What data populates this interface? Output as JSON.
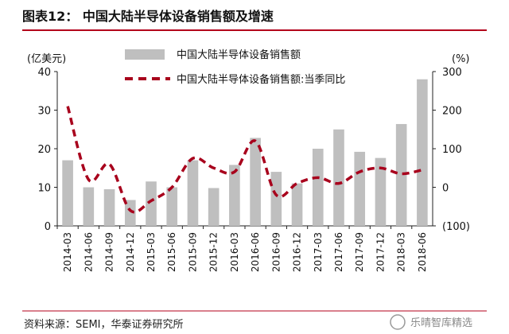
{
  "header": {
    "title": "图表12：  中国大陆半导体设备销售额及增速"
  },
  "footer": {
    "source": "资料来源：SEMI，华泰证券研究所"
  },
  "watermark": {
    "text": "乐晴智库精选"
  },
  "colors": {
    "bar": "#bfbfbf",
    "line": "#a8001c",
    "rule": "#b3001b"
  },
  "chart_data": {
    "type": "bar",
    "categories": [
      "2014-03",
      "2014-06",
      "2014-09",
      "2014-12",
      "2015-03",
      "2015-06",
      "2015-09",
      "2015-12",
      "2016-03",
      "2016-06",
      "2016-09",
      "2016-12",
      "2017-03",
      "2017-06",
      "2017-09",
      "2017-12",
      "2018-03",
      "2018-06"
    ],
    "series": [
      {
        "name": "中国大陆半导体设备销售额",
        "type": "bar",
        "axis": "left",
        "values": [
          17.0,
          10.0,
          9.5,
          6.7,
          11.5,
          10.0,
          17.0,
          9.8,
          15.8,
          22.8,
          14.0,
          11.0,
          20.0,
          25.0,
          19.2,
          17.6,
          26.4,
          38.0
        ]
      },
      {
        "name": "中国大陆半导体设备销售额:当季同比",
        "type": "line",
        "axis": "right",
        "values": [
          210,
          20,
          60,
          -60,
          -35,
          0,
          75,
          50,
          40,
          120,
          -20,
          10,
          25,
          10,
          40,
          50,
          35,
          45
        ]
      }
    ],
    "ylabel_left": "(亿美元)",
    "ylabel_right": "(%)",
    "ylim_left": [
      0,
      40
    ],
    "ylim_right": [
      -100,
      300
    ],
    "yticks_left": [
      "0",
      "10",
      "20",
      "30",
      "40"
    ],
    "yticks_right": [
      "(100)",
      "0",
      "100",
      "200",
      "300"
    ],
    "grid": false,
    "legend_position": "top-center"
  }
}
